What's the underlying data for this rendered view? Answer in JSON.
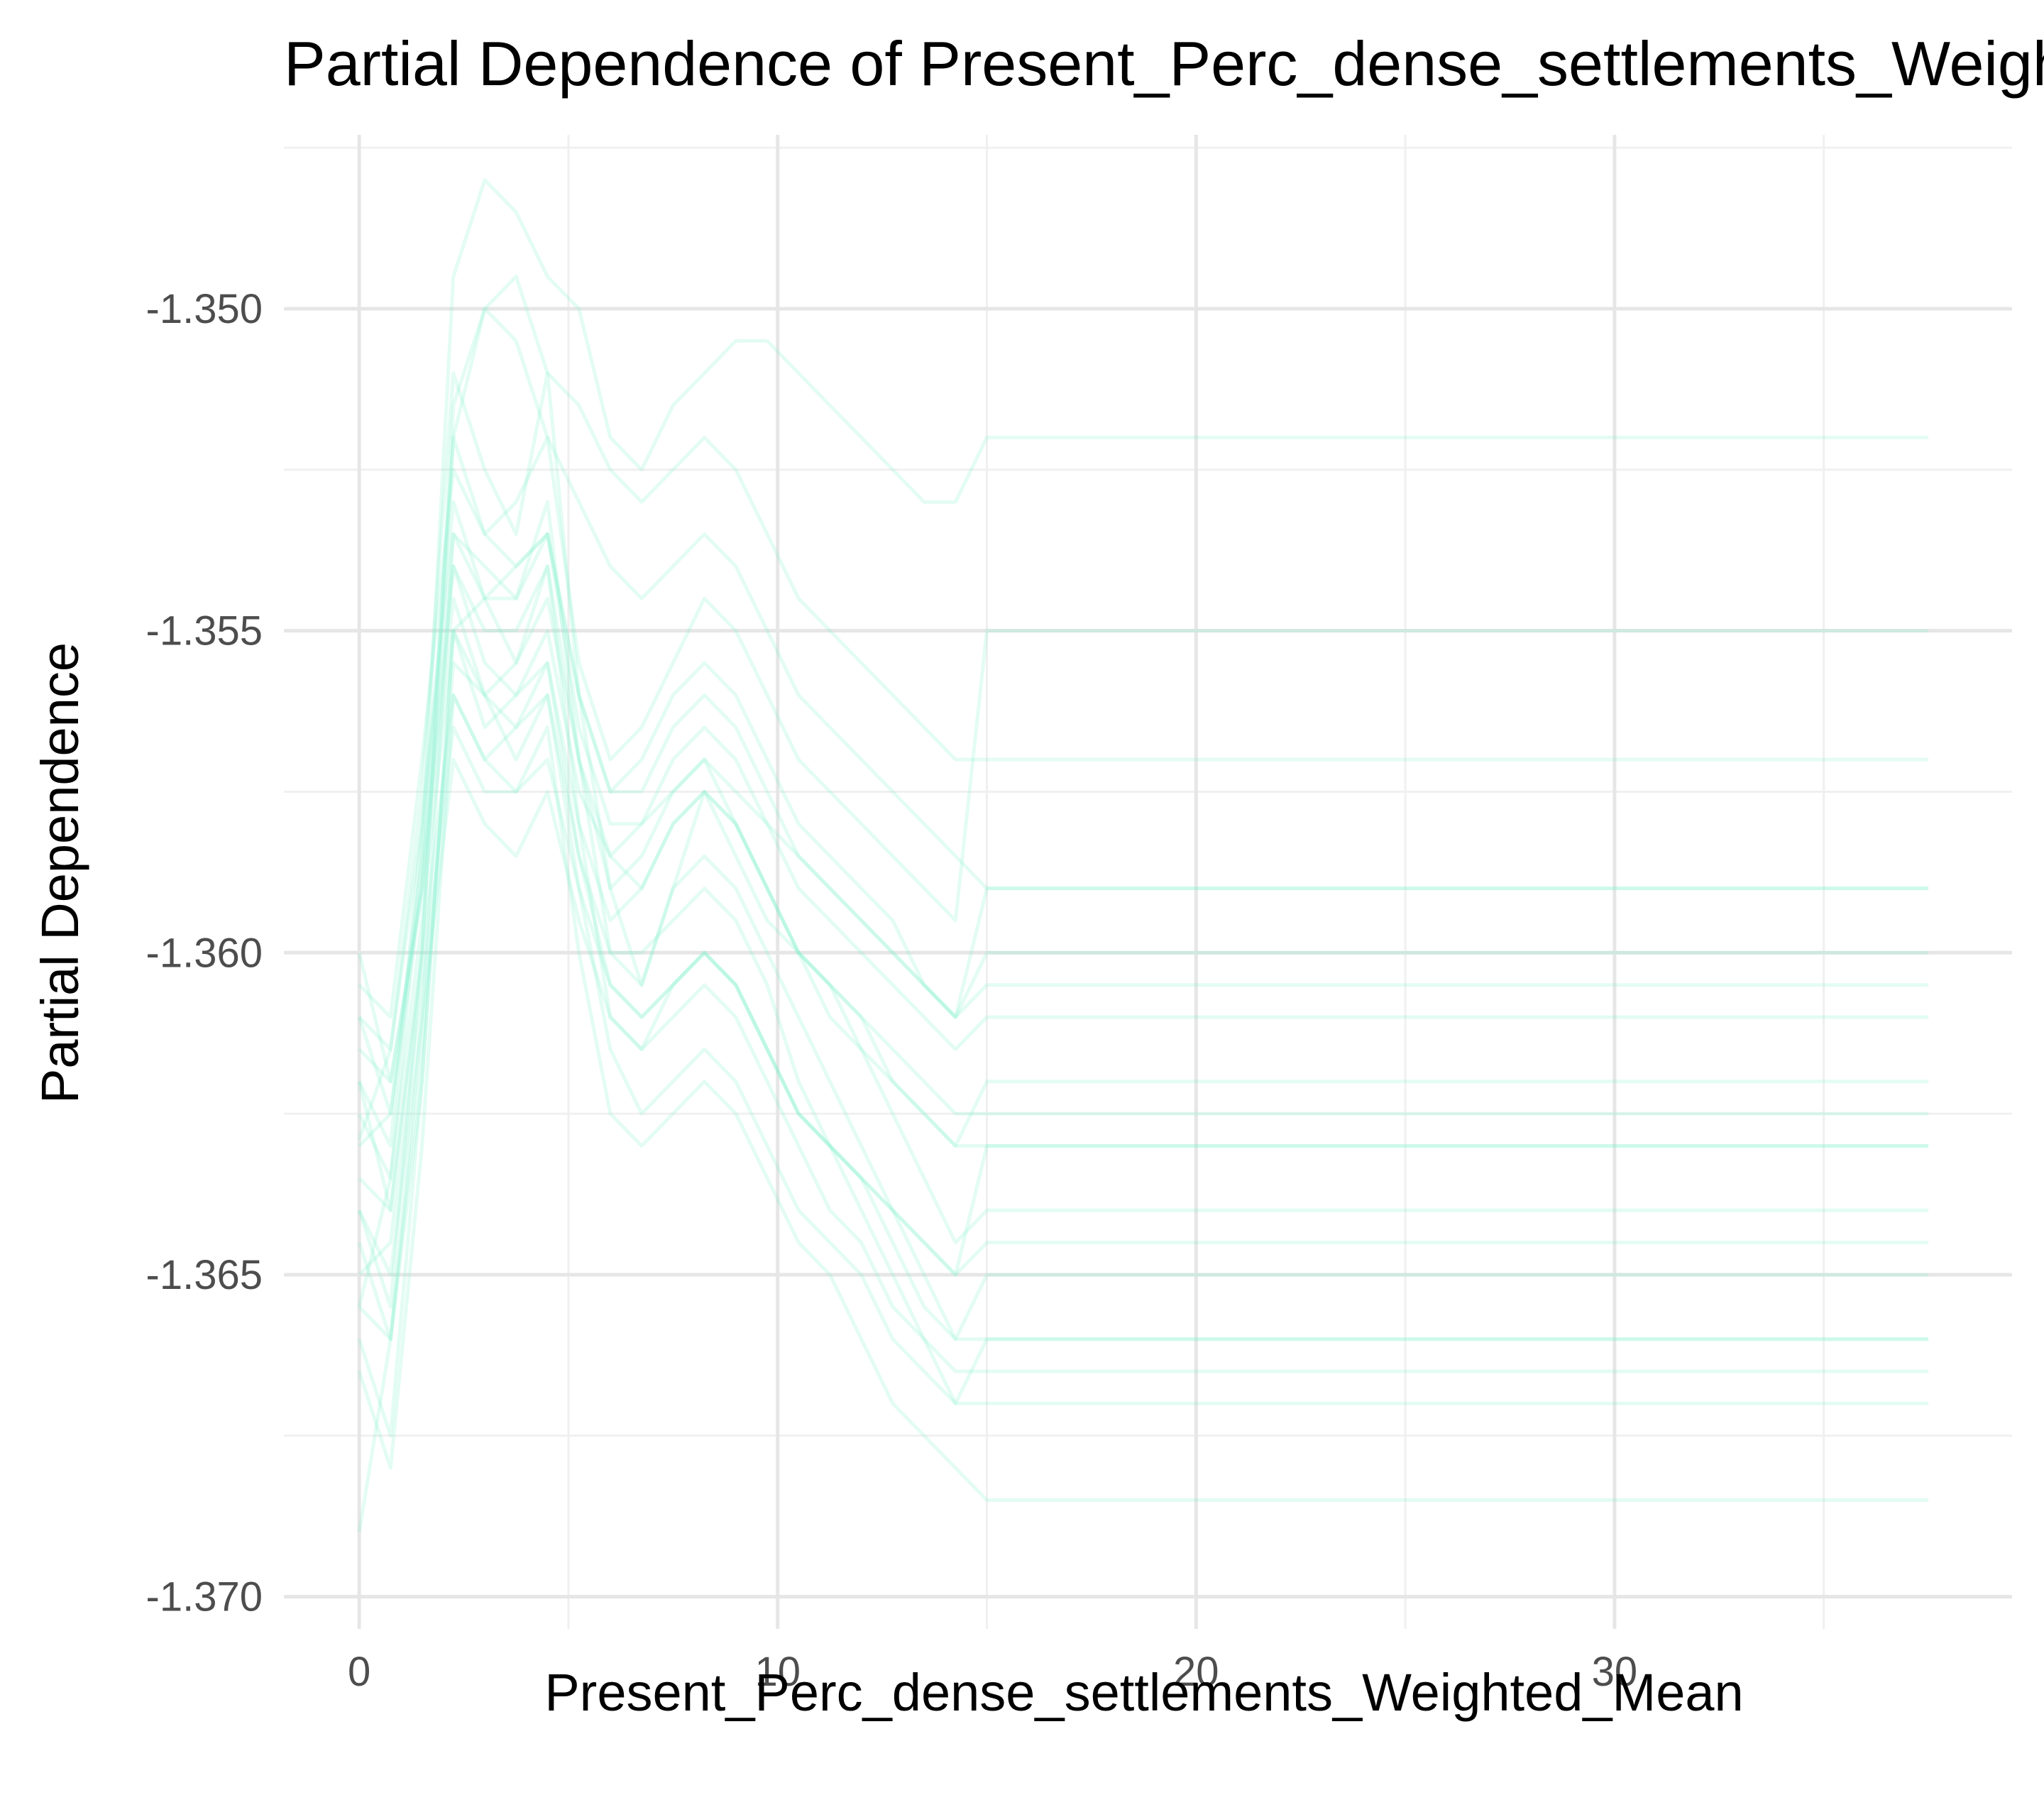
{
  "chart_data": {
    "type": "line",
    "title": "Partial Dependence of Present_Perc_dense_settlements_Weighted_Mean",
    "xlabel": "Present_Perc_dense_settlements_Weighted_Mean",
    "ylabel": "Partial Dependence",
    "xlim": [
      -1.8,
      39.5
    ],
    "ylim": [
      -1.3705,
      -1.3473
    ],
    "x_ticks": [
      0,
      10,
      20,
      30
    ],
    "x_tick_labels": [
      "0",
      "10",
      "20",
      "30"
    ],
    "y_ticks": [
      -1.37,
      -1.365,
      -1.36,
      -1.355,
      -1.35
    ],
    "y_tick_labels": [
      "-1.370",
      "-1.365",
      "-1.360",
      "-1.355",
      "-1.350"
    ],
    "grid": true,
    "legend": "none",
    "line_color": "#7ef2cc",
    "x": [
      0,
      0.75,
      1.5,
      2.25,
      3,
      3.75,
      4.5,
      5.25,
      6,
      6.75,
      7.5,
      8.25,
      9,
      9.75,
      10.5,
      11.25,
      12,
      12.75,
      13.5,
      14.25,
      15,
      16,
      17,
      18,
      19,
      20,
      21,
      22,
      23,
      24,
      25,
      26,
      27,
      28,
      29,
      30,
      31,
      32,
      33,
      34,
      35,
      36,
      37.5
    ],
    "series": [
      {
        "values": [
          -1.3629,
          -1.3615,
          -1.3575,
          -1.351,
          -1.3525,
          -1.3535,
          -1.351,
          -1.356,
          -1.359,
          -1.3605,
          -1.359,
          -1.3575,
          -1.3585,
          -1.3595,
          -1.36,
          -1.3605,
          -1.361,
          -1.362,
          -1.3625,
          -1.363,
          -1.362,
          -1.362,
          -1.362,
          -1.362,
          -1.362,
          -1.362,
          -1.362,
          -1.362,
          -1.362,
          -1.362,
          -1.362,
          -1.362,
          -1.362,
          -1.362,
          -1.362,
          -1.362,
          -1.362,
          -1.362,
          -1.362,
          -1.362,
          -1.362,
          -1.362,
          -1.362
        ]
      },
      {
        "values": [
          -1.3655,
          -1.3635,
          -1.3585,
          -1.3495,
          -1.348,
          -1.3485,
          -1.3495,
          -1.35,
          -1.352,
          -1.3525,
          -1.3515,
          -1.351,
          -1.3505,
          -1.3505,
          -1.351,
          -1.3515,
          -1.352,
          -1.3525,
          -1.353,
          -1.353,
          -1.352,
          -1.352,
          -1.352,
          -1.352,
          -1.352,
          -1.352,
          -1.352,
          -1.352,
          -1.352,
          -1.352,
          -1.352,
          -1.352,
          -1.352,
          -1.352,
          -1.352,
          -1.352,
          -1.352,
          -1.352,
          -1.352,
          -1.352,
          -1.352,
          -1.352,
          -1.352
        ]
      },
      {
        "values": [
          -1.364,
          -1.3655,
          -1.36,
          -1.352,
          -1.35,
          -1.3495,
          -1.351,
          -1.3515,
          -1.3525,
          -1.353,
          -1.3525,
          -1.352,
          -1.3525,
          -1.3535,
          -1.3545,
          -1.355,
          -1.3555,
          -1.356,
          -1.3565,
          -1.357,
          -1.357,
          -1.357,
          -1.357,
          -1.357,
          -1.357,
          -1.357,
          -1.357,
          -1.357,
          -1.357,
          -1.357,
          -1.357,
          -1.357,
          -1.357,
          -1.357,
          -1.357,
          -1.357,
          -1.357,
          -1.357,
          -1.357,
          -1.357,
          -1.357,
          -1.357,
          -1.357
        ]
      },
      {
        "values": [
          -1.362,
          -1.363,
          -1.358,
          -1.353,
          -1.3545,
          -1.354,
          -1.3535,
          -1.356,
          -1.3575,
          -1.357,
          -1.356,
          -1.3555,
          -1.356,
          -1.357,
          -1.358,
          -1.3585,
          -1.359,
          -1.3595,
          -1.3605,
          -1.361,
          -1.36,
          -1.36,
          -1.36,
          -1.36,
          -1.36,
          -1.36,
          -1.36,
          -1.36,
          -1.36,
          -1.36,
          -1.36,
          -1.36,
          -1.36,
          -1.36,
          -1.36,
          -1.36,
          -1.36,
          -1.36,
          -1.36,
          -1.36,
          -1.36,
          -1.36,
          -1.36
        ]
      },
      {
        "values": [
          -1.36,
          -1.362,
          -1.359,
          -1.3545,
          -1.356,
          -1.3555,
          -1.3545,
          -1.357,
          -1.359,
          -1.3585,
          -1.3575,
          -1.357,
          -1.358,
          -1.359,
          -1.36,
          -1.361,
          -1.3615,
          -1.3625,
          -1.3635,
          -1.3645,
          -1.364,
          -1.364,
          -1.364,
          -1.364,
          -1.364,
          -1.364,
          -1.364,
          -1.364,
          -1.364,
          -1.364,
          -1.364,
          -1.364,
          -1.364,
          -1.364,
          -1.364,
          -1.364,
          -1.364,
          -1.364,
          -1.364,
          -1.364,
          -1.364,
          -1.364,
          -1.364
        ]
      },
      {
        "values": [
          -1.366,
          -1.3675,
          -1.362,
          -1.355,
          -1.3545,
          -1.3555,
          -1.354,
          -1.358,
          -1.361,
          -1.3615,
          -1.3605,
          -1.36,
          -1.3605,
          -1.3615,
          -1.3625,
          -1.363,
          -1.3635,
          -1.3645,
          -1.3655,
          -1.366,
          -1.365,
          -1.365,
          -1.365,
          -1.365,
          -1.365,
          -1.365,
          -1.365,
          -1.365,
          -1.365,
          -1.365,
          -1.365,
          -1.365,
          -1.365,
          -1.365,
          -1.365,
          -1.365,
          -1.365,
          -1.365,
          -1.365,
          -1.365,
          -1.365,
          -1.365,
          -1.365
        ]
      },
      {
        "values": [
          -1.3635,
          -1.364,
          -1.36,
          -1.356,
          -1.357,
          -1.3565,
          -1.356,
          -1.3585,
          -1.36,
          -1.3605,
          -1.359,
          -1.3585,
          -1.359,
          -1.36,
          -1.361,
          -1.362,
          -1.363,
          -1.364,
          -1.365,
          -1.366,
          -1.366,
          -1.366,
          -1.366,
          -1.366,
          -1.366,
          -1.366,
          -1.366,
          -1.366,
          -1.366,
          -1.366,
          -1.366,
          -1.366,
          -1.366,
          -1.366,
          -1.366,
          -1.366,
          -1.366,
          -1.366,
          -1.366,
          -1.366,
          -1.366,
          -1.366,
          -1.366
        ]
      },
      {
        "values": [
          -1.361,
          -1.3625,
          -1.3585,
          -1.354,
          -1.3555,
          -1.356,
          -1.3555,
          -1.358,
          -1.3595,
          -1.359,
          -1.358,
          -1.3575,
          -1.358,
          -1.359,
          -1.36,
          -1.3605,
          -1.3615,
          -1.362,
          -1.3625,
          -1.363,
          -1.363,
          -1.363,
          -1.363,
          -1.363,
          -1.363,
          -1.363,
          -1.363,
          -1.363,
          -1.363,
          -1.363,
          -1.363,
          -1.363,
          -1.363,
          -1.363,
          -1.363,
          -1.363,
          -1.363,
          -1.363,
          -1.363,
          -1.363,
          -1.363,
          -1.363,
          -1.363
        ]
      },
      {
        "values": [
          -1.3645,
          -1.366,
          -1.361,
          -1.3535,
          -1.354,
          -1.3545,
          -1.353,
          -1.357,
          -1.36,
          -1.36,
          -1.3595,
          -1.359,
          -1.3595,
          -1.3605,
          -1.362,
          -1.363,
          -1.364,
          -1.365,
          -1.366,
          -1.367,
          -1.367,
          -1.367,
          -1.367,
          -1.367,
          -1.367,
          -1.367,
          -1.367,
          -1.367,
          -1.367,
          -1.367,
          -1.367,
          -1.367,
          -1.367,
          -1.367,
          -1.367,
          -1.367,
          -1.367,
          -1.367,
          -1.367,
          -1.367,
          -1.367,
          -1.367,
          -1.367
        ]
      },
      {
        "values": [
          -1.3625,
          -1.3635,
          -1.3595,
          -1.355,
          -1.3565,
          -1.356,
          -1.355,
          -1.3575,
          -1.3585,
          -1.358,
          -1.3575,
          -1.357,
          -1.3575,
          -1.358,
          -1.3585,
          -1.359,
          -1.3595,
          -1.36,
          -1.3605,
          -1.361,
          -1.359,
          -1.359,
          -1.359,
          -1.359,
          -1.359,
          -1.359,
          -1.359,
          -1.359,
          -1.359,
          -1.359,
          -1.359,
          -1.359,
          -1.359,
          -1.359,
          -1.359,
          -1.359,
          -1.359,
          -1.359,
          -1.359,
          -1.359,
          -1.359,
          -1.359,
          -1.359
        ]
      },
      {
        "values": [
          -1.3665,
          -1.368,
          -1.363,
          -1.356,
          -1.357,
          -1.3575,
          -1.3565,
          -1.36,
          -1.3625,
          -1.363,
          -1.3625,
          -1.362,
          -1.3625,
          -1.3635,
          -1.3645,
          -1.365,
          -1.366,
          -1.367,
          -1.3675,
          -1.368,
          -1.3685,
          -1.3685,
          -1.3685,
          -1.3685,
          -1.3685,
          -1.3685,
          -1.3685,
          -1.3685,
          -1.3685,
          -1.3685,
          -1.3685,
          -1.3685,
          -1.3685,
          -1.3685,
          -1.3685,
          -1.3685,
          -1.3685,
          -1.3685,
          -1.3685,
          -1.3685,
          -1.3685,
          -1.3685,
          -1.3685
        ]
      },
      {
        "values": [
          -1.3615,
          -1.362,
          -1.359,
          -1.352,
          -1.3535,
          -1.353,
          -1.352,
          -1.3555,
          -1.357,
          -1.3565,
          -1.3555,
          -1.3545,
          -1.355,
          -1.356,
          -1.357,
          -1.3575,
          -1.358,
          -1.3585,
          -1.359,
          -1.3595,
          -1.355,
          -1.355,
          -1.355,
          -1.355,
          -1.355,
          -1.355,
          -1.355,
          -1.355,
          -1.355,
          -1.355,
          -1.355,
          -1.355,
          -1.355,
          -1.355,
          -1.355,
          -1.355,
          -1.355,
          -1.355,
          -1.355,
          -1.355,
          -1.355,
          -1.355,
          -1.355
        ]
      },
      {
        "values": [
          -1.365,
          -1.3645,
          -1.3605,
          -1.3565,
          -1.3575,
          -1.3575,
          -1.357,
          -1.359,
          -1.3605,
          -1.361,
          -1.3605,
          -1.36,
          -1.3605,
          -1.3615,
          -1.3625,
          -1.363,
          -1.3635,
          -1.364,
          -1.3645,
          -1.365,
          -1.3645,
          -1.3645,
          -1.3645,
          -1.3645,
          -1.3645,
          -1.3645,
          -1.3645,
          -1.3645,
          -1.3645,
          -1.3645,
          -1.3645,
          -1.3645,
          -1.3645,
          -1.3645,
          -1.3645,
          -1.3645,
          -1.3645,
          -1.3645,
          -1.3645,
          -1.3645,
          -1.3645,
          -1.3645,
          -1.3645
        ]
      },
      {
        "values": [
          -1.369,
          -1.366,
          -1.362,
          -1.355,
          -1.356,
          -1.357,
          -1.356,
          -1.359,
          -1.3615,
          -1.3625,
          -1.362,
          -1.3615,
          -1.362,
          -1.363,
          -1.364,
          -1.3645,
          -1.365,
          -1.366,
          -1.3665,
          -1.367,
          -1.366,
          -1.366,
          -1.366,
          -1.366,
          -1.366,
          -1.366,
          -1.366,
          -1.366,
          -1.366,
          -1.366,
          -1.366,
          -1.366,
          -1.366,
          -1.366,
          -1.366,
          -1.366,
          -1.366,
          -1.366,
          -1.366,
          -1.366,
          -1.366,
          -1.366,
          -1.366
        ]
      },
      {
        "values": [
          -1.3605,
          -1.361,
          -1.357,
          -1.3525,
          -1.3535,
          -1.354,
          -1.3535,
          -1.356,
          -1.3575,
          -1.3575,
          -1.3565,
          -1.356,
          -1.3565,
          -1.3575,
          -1.3585,
          -1.359,
          -1.3595,
          -1.36,
          -1.3605,
          -1.361,
          -1.3605,
          -1.3605,
          -1.3605,
          -1.3605,
          -1.3605,
          -1.3605,
          -1.3605,
          -1.3605,
          -1.3605,
          -1.3605,
          -1.3605,
          -1.3605,
          -1.3605,
          -1.3605,
          -1.3605,
          -1.3605,
          -1.3605,
          -1.3605,
          -1.3605,
          -1.3605,
          -1.3605,
          -1.3605,
          -1.3605
        ]
      },
      {
        "values": [
          -1.364,
          -1.365,
          -1.361,
          -1.357,
          -1.358,
          -1.3585,
          -1.3575,
          -1.3595,
          -1.361,
          -1.3615,
          -1.361,
          -1.3605,
          -1.361,
          -1.362,
          -1.363,
          -1.364,
          -1.3645,
          -1.3655,
          -1.366,
          -1.3665,
          -1.3665,
          -1.3665,
          -1.3665,
          -1.3665,
          -1.3665,
          -1.3665,
          -1.3665,
          -1.3665,
          -1.3665,
          -1.3665,
          -1.3665,
          -1.3665,
          -1.3665,
          -1.3665,
          -1.3665,
          -1.3665,
          -1.3665,
          -1.3665,
          -1.3665,
          -1.3665,
          -1.3665,
          -1.3665,
          -1.3665
        ]
      },
      {
        "values": [
          -1.363,
          -1.3625,
          -1.359,
          -1.354,
          -1.355,
          -1.355,
          -1.354,
          -1.357,
          -1.3585,
          -1.359,
          -1.358,
          -1.3575,
          -1.358,
          -1.359,
          -1.36,
          -1.3605,
          -1.361,
          -1.3615,
          -1.362,
          -1.3625,
          -1.3625,
          -1.3625,
          -1.3625,
          -1.3625,
          -1.3625,
          -1.3625,
          -1.3625,
          -1.3625,
          -1.3625,
          -1.3625,
          -1.3625,
          -1.3625,
          -1.3625,
          -1.3625,
          -1.3625,
          -1.3625,
          -1.3625,
          -1.3625,
          -1.3625,
          -1.3625,
          -1.3625,
          -1.3625,
          -1.3625
        ]
      },
      {
        "values": [
          -1.362,
          -1.364,
          -1.36,
          -1.3515,
          -1.35,
          -1.3505,
          -1.352,
          -1.353,
          -1.354,
          -1.3545,
          -1.354,
          -1.3535,
          -1.354,
          -1.355,
          -1.356,
          -1.3565,
          -1.357,
          -1.3575,
          -1.358,
          -1.3585,
          -1.359,
          -1.359,
          -1.359,
          -1.359,
          -1.359,
          -1.359,
          -1.359,
          -1.359,
          -1.359,
          -1.359,
          -1.359,
          -1.359,
          -1.359,
          -1.359,
          -1.359,
          -1.359,
          -1.359,
          -1.359,
          -1.359,
          -1.359,
          -1.359,
          -1.359,
          -1.359
        ]
      },
      {
        "values": [
          -1.3655,
          -1.366,
          -1.3615,
          -1.3555,
          -1.356,
          -1.3565,
          -1.3555,
          -1.3585,
          -1.3605,
          -1.361,
          -1.3605,
          -1.36,
          -1.3605,
          -1.3615,
          -1.3625,
          -1.363,
          -1.3635,
          -1.364,
          -1.3645,
          -1.365,
          -1.363,
          -1.363,
          -1.363,
          -1.363,
          -1.363,
          -1.363,
          -1.363,
          -1.363,
          -1.363,
          -1.363,
          -1.363,
          -1.363,
          -1.363,
          -1.363,
          -1.363,
          -1.363,
          -1.363,
          -1.363,
          -1.363,
          -1.363,
          -1.363,
          -1.363,
          -1.363
        ]
      },
      {
        "values": [
          -1.361,
          -1.3615,
          -1.358,
          -1.3535,
          -1.3545,
          -1.3545,
          -1.3535,
          -1.3565,
          -1.358,
          -1.358,
          -1.357,
          -1.3565,
          -1.357,
          -1.358,
          -1.359,
          -1.3595,
          -1.36,
          -1.3605,
          -1.361,
          -1.3615,
          -1.361,
          -1.361,
          -1.361,
          -1.361,
          -1.361,
          -1.361,
          -1.361,
          -1.361,
          -1.361,
          -1.361,
          -1.361,
          -1.361,
          -1.361,
          -1.361,
          -1.361,
          -1.361,
          -1.361,
          -1.361,
          -1.361,
          -1.361,
          -1.361,
          -1.361,
          -1.361
        ]
      }
    ]
  }
}
